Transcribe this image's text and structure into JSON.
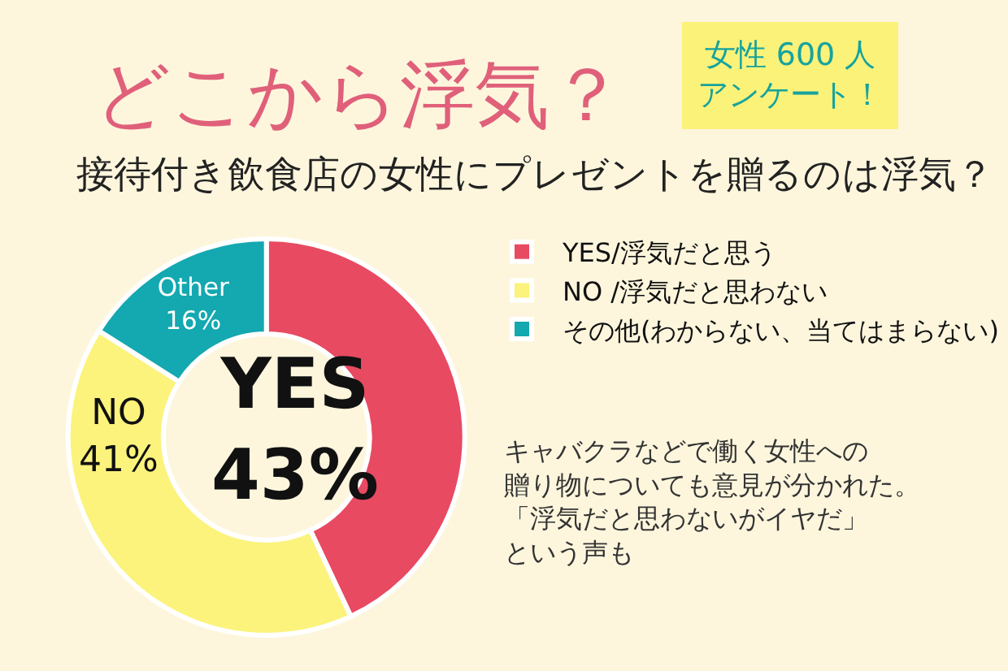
{
  "chart_data": {
    "type": "donut",
    "title": "どこから浮気？",
    "subtitle": "接待付き飲食店の女性にプレゼントを贈るのは浮気？",
    "annotations": [
      "女性 600 人アンケート！",
      "キャバクラなどで働く女性への贈り物についても意見が分かれた。「浮気だと思わないがイヤだ」という声も"
    ],
    "categories": [
      "YES/浮気だと思う",
      "NO /浮気だと思わない",
      "その他(わからない、当てはまらない)"
    ],
    "values": [
      43,
      41,
      16
    ],
    "colors": [
      "#e84a62",
      "#fbf37c",
      "#14a8b0"
    ],
    "value_labels": [
      "YES\n43%",
      "NO\n41%",
      "Other\n16%"
    ],
    "legend": "top right"
  }
}
